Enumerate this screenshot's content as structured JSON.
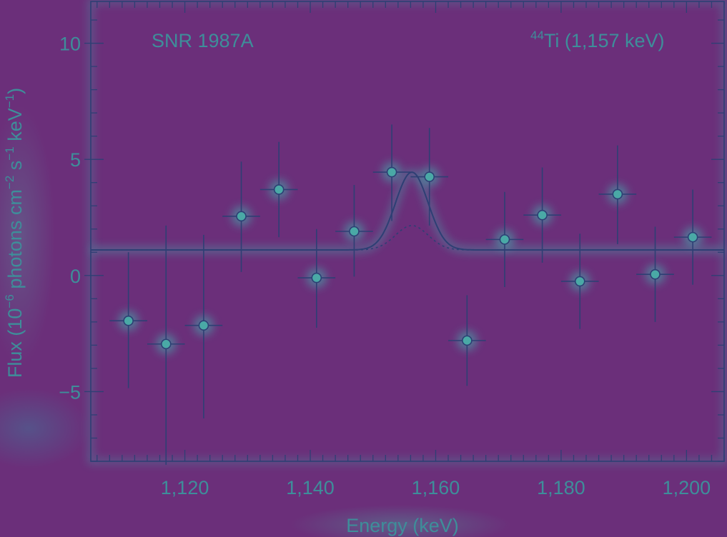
{
  "chart_data": {
    "type": "scatter",
    "title": "",
    "xlabel": "Energy (keV)",
    "ylabel_parts": {
      "a": "Flux (10",
      "a_sup": "−6",
      "b": " photons cm",
      "b_sup": "−2",
      "c": " s",
      "c_sup": "−1",
      "d": " keV",
      "d_sup": "−1",
      "e": ")"
    },
    "annotations": {
      "left": "SNR 1987A",
      "right_sup": "44",
      "right_main": "Ti (1,157 keV)"
    },
    "xlim": [
      1105,
      1206
    ],
    "ylim": [
      -8,
      11.8
    ],
    "x_ticks": [
      {
        "value": 1120,
        "label": "1,120"
      },
      {
        "value": 1140,
        "label": "1,140"
      },
      {
        "value": 1160,
        "label": "1,160"
      },
      {
        "value": 1180,
        "label": "1,180"
      },
      {
        "value": 1200,
        "label": "1,200"
      }
    ],
    "y_ticks": [
      {
        "value": -5,
        "label": "−5"
      },
      {
        "value": 0,
        "label": "0"
      },
      {
        "value": 5,
        "label": "5"
      },
      {
        "value": 10,
        "label": "10"
      }
    ],
    "x_minor_step": 2,
    "y_minor_step": 1,
    "points": [
      {
        "x": 1111,
        "y": -1.95,
        "xerr": 3,
        "yerr_low": 2.9,
        "yerr_high": 2.95
      },
      {
        "x": 1117,
        "y": -2.95,
        "xerr": 3,
        "yerr_low": 5.2,
        "yerr_high": 5.1
      },
      {
        "x": 1123,
        "y": -2.15,
        "xerr": 3,
        "yerr_low": 4.0,
        "yerr_high": 3.9
      },
      {
        "x": 1129,
        "y": 2.55,
        "xerr": 3,
        "yerr_low": 2.4,
        "yerr_high": 2.35
      },
      {
        "x": 1135,
        "y": 3.7,
        "xerr": 3,
        "yerr_low": 2.05,
        "yerr_high": 2.05
      },
      {
        "x": 1141,
        "y": -0.1,
        "xerr": 3,
        "yerr_low": 2.15,
        "yerr_high": 2.1
      },
      {
        "x": 1147,
        "y": 1.9,
        "xerr": 3,
        "yerr_low": 1.95,
        "yerr_high": 2.0
      },
      {
        "x": 1153,
        "y": 4.45,
        "xerr": 3,
        "yerr_low": 2.1,
        "yerr_high": 2.05
      },
      {
        "x": 1159,
        "y": 4.25,
        "xerr": 3,
        "yerr_low": 2.1,
        "yerr_high": 2.1
      },
      {
        "x": 1165,
        "y": -2.8,
        "xerr": 3,
        "yerr_low": 1.95,
        "yerr_high": 1.95
      },
      {
        "x": 1171,
        "y": 1.55,
        "xerr": 3,
        "yerr_low": 2.05,
        "yerr_high": 2.05
      },
      {
        "x": 1177,
        "y": 2.6,
        "xerr": 3,
        "yerr_low": 2.05,
        "yerr_high": 2.05
      },
      {
        "x": 1183,
        "y": -0.25,
        "xerr": 3,
        "yerr_low": 2.05,
        "yerr_high": 2.05
      },
      {
        "x": 1189,
        "y": 3.5,
        "xerr": 3,
        "yerr_low": 2.15,
        "yerr_high": 2.1
      },
      {
        "x": 1195,
        "y": 0.05,
        "xerr": 3,
        "yerr_low": 2.05,
        "yerr_high": 2.05
      },
      {
        "x": 1201,
        "y": 1.65,
        "xerr": 3,
        "yerr_low": 2.05,
        "yerr_high": 2.05
      }
    ],
    "model_curves": [
      {
        "style": "solid",
        "baseline": 1.1,
        "peak": 4.45,
        "center": 1156.2,
        "sigma": 2.6
      },
      {
        "style": "dotted",
        "baseline": 1.1,
        "peak": 2.15,
        "center": 1156.2,
        "sigma": 2.6
      }
    ]
  },
  "colors": {
    "background": "#6b2f7a",
    "ink": "#2e3f74",
    "glow": "#3fb3b0",
    "label": "#3e8e9a"
  }
}
